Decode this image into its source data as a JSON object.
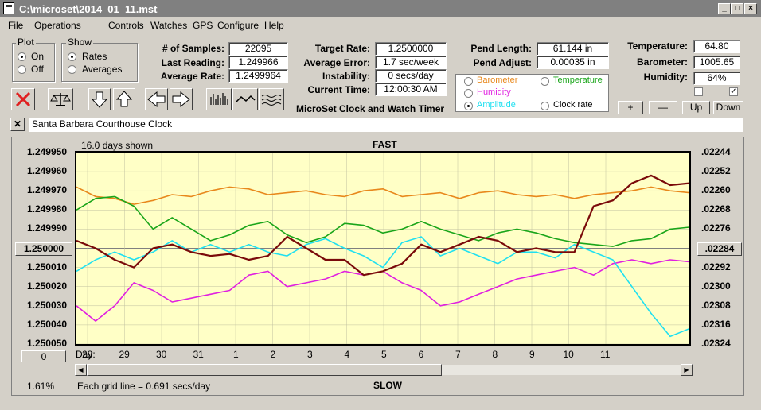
{
  "window": {
    "title": "C:\\microset\\2014_01_11.mst"
  },
  "menu": [
    "File",
    "Operations",
    "Controls",
    "Watches",
    "GPS",
    "Configure",
    "Help"
  ],
  "plot_group": {
    "title": "Plot",
    "on": "On",
    "off": "Off",
    "selected": "On"
  },
  "show_group": {
    "title": "Show",
    "rates": "Rates",
    "averages": "Averages",
    "selected": "Rates"
  },
  "stats": {
    "samples_label": "# of Samples:",
    "samples": "22095",
    "last_label": "Last Reading:",
    "last": "1.249966",
    "avg_label": "Average Rate:",
    "avg": "1.2499964"
  },
  "targets": {
    "target_label": "Target Rate:",
    "target": "1.2500000",
    "err_label": "Average Error:",
    "err": "1.7 sec/week",
    "instab_label": "Instability:",
    "instab": "0 secs/day",
    "time_label": "Current Time:",
    "time": "12:00:30 AM",
    "app_caption": "MicroSet Clock and Watch Timer"
  },
  "pend": {
    "length_label": "Pend Length:",
    "length": "61.144 in",
    "adjust_label": "Pend Adjust:",
    "adjust": "0.00035 in"
  },
  "env": {
    "temp_label": "Temperature:",
    "temp": "64.80",
    "baro_label": "Barometer:",
    "baro": "1005.65",
    "hum_label": "Humidity:",
    "hum": "64%"
  },
  "legend": {
    "barometer": "Barometer",
    "temperature": "Temperature",
    "humidity": "Humidity",
    "amplitude": "Amplitude",
    "clock_rate": "Clock rate",
    "selected": "Amplitude"
  },
  "scale_buttons": {
    "plus": "+",
    "minus": "—",
    "up": "Up",
    "down": "Down"
  },
  "clock_name": "Santa Barbara Courthouse Clock",
  "colors": {
    "barometer": "#e8881c",
    "temperature": "#1aa51a",
    "humidity": "#e020e0",
    "amplitude": "#20e0f0",
    "clock_rate": "#7a0a0a",
    "plot_bg": "#ffffc6"
  },
  "plot": {
    "days_shown": "16.0 days shown",
    "top_label": "FAST",
    "bottom_label": "SLOW",
    "day_prefix": "Day:",
    "grid_note": "Each grid line = 0.691 secs/day",
    "percent": "1.61%",
    "left_center_value": "1.250000",
    "right_center_value": ".02284",
    "offset_value": "0"
  },
  "chart_data": {
    "type": "line",
    "x_tick_labels": [
      "28",
      "29",
      "30",
      "31",
      "1",
      "2",
      "3",
      "4",
      "5",
      "6",
      "7",
      "8",
      "9",
      "10",
      "11"
    ],
    "left_axis": {
      "ticks": [
        "1.249950",
        "1.249960",
        "1.249970",
        "1.249980",
        "1.249990",
        "1.250000",
        "1.250010",
        "1.250020",
        "1.250030",
        "1.250040",
        "1.250050"
      ],
      "range": [
        1.24995,
        1.25005
      ],
      "inverted": true
    },
    "right_axis": {
      "ticks": [
        ".02244",
        ".02252",
        ".02260",
        ".02268",
        ".02276",
        ".02284",
        ".02292",
        ".02300",
        ".02308",
        ".02316",
        ".02324"
      ],
      "range": [
        0.02244,
        0.02324
      ]
    },
    "x_range": [
      0,
      16
    ],
    "series": [
      {
        "name": "Barometer",
        "color": "#e8881c",
        "x": [
          0,
          0.5,
          1,
          1.5,
          2,
          2.5,
          3,
          3.5,
          4,
          4.5,
          5,
          5.5,
          6,
          6.5,
          7,
          7.5,
          8,
          8.5,
          9,
          9.5,
          10,
          10.5,
          11,
          11.5,
          12,
          12.5,
          13,
          13.5,
          14,
          14.5,
          15,
          15.5,
          16
        ],
        "y": [
          1.249968,
          1.249973,
          1.249974,
          1.249977,
          1.249975,
          1.249972,
          1.249973,
          1.24997,
          1.249968,
          1.249969,
          1.249972,
          1.249971,
          1.24997,
          1.249972,
          1.249973,
          1.24997,
          1.249969,
          1.249973,
          1.249972,
          1.249971,
          1.249974,
          1.249971,
          1.24997,
          1.249972,
          1.249973,
          1.249972,
          1.249974,
          1.249972,
          1.249971,
          1.24997,
          1.249968,
          1.24997,
          1.249971
        ]
      },
      {
        "name": "Temperature",
        "color": "#1aa51a",
        "x": [
          0,
          0.5,
          1,
          1.5,
          2,
          2.5,
          3,
          3.5,
          4,
          4.5,
          5,
          5.5,
          6,
          6.5,
          7,
          7.5,
          8,
          8.5,
          9,
          9.5,
          10,
          10.5,
          11,
          11.5,
          12,
          12.5,
          13,
          13.5,
          14,
          14.5,
          15,
          15.5,
          16
        ],
        "y": [
          1.24998,
          1.249974,
          1.249973,
          1.249978,
          1.24999,
          1.249984,
          1.24999,
          1.249996,
          1.249993,
          1.249988,
          1.249986,
          1.249993,
          1.249997,
          1.249994,
          1.249987,
          1.249988,
          1.249992,
          1.24999,
          1.249986,
          1.24999,
          1.249993,
          1.249996,
          1.249992,
          1.24999,
          1.249992,
          1.249995,
          1.249997,
          1.249998,
          1.249999,
          1.249996,
          1.249995,
          1.24999,
          1.249989
        ]
      },
      {
        "name": "Humidity",
        "color": "#e020e0",
        "x": [
          0,
          0.5,
          1,
          1.5,
          2,
          2.5,
          3,
          3.5,
          4,
          4.5,
          5,
          5.5,
          6,
          6.5,
          7,
          7.5,
          8,
          8.5,
          9,
          9.5,
          10,
          10.5,
          11,
          11.5,
          12,
          12.5,
          13,
          13.5,
          14,
          14.5,
          15,
          15.5,
          16
        ],
        "y": [
          1.25003,
          1.250038,
          1.25003,
          1.250018,
          1.250022,
          1.250028,
          1.250026,
          1.250024,
          1.250022,
          1.250014,
          1.250012,
          1.25002,
          1.250018,
          1.250016,
          1.250012,
          1.250014,
          1.250012,
          1.250018,
          1.250022,
          1.25003,
          1.250028,
          1.250024,
          1.25002,
          1.250016,
          1.250014,
          1.250012,
          1.25001,
          1.250014,
          1.250008,
          1.250006,
          1.250008,
          1.250006,
          1.250007
        ]
      },
      {
        "name": "Amplitude",
        "color": "#20e0f0",
        "x": [
          0,
          0.5,
          1,
          1.5,
          2,
          2.5,
          3,
          3.5,
          4,
          4.5,
          5,
          5.5,
          6,
          6.5,
          7,
          7.5,
          8,
          8.5,
          9,
          9.5,
          10,
          10.5,
          11,
          11.5,
          12,
          12.5,
          13,
          13.5,
          14,
          14.5,
          15,
          15.5,
          16
        ],
        "y": [
          1.250012,
          1.250006,
          1.250002,
          1.250006,
          1.250002,
          1.249996,
          1.250002,
          1.249998,
          1.250002,
          1.249998,
          1.250002,
          1.250004,
          1.249998,
          1.249995,
          1.25,
          1.250004,
          1.25001,
          1.249997,
          1.249994,
          1.250004,
          1.25,
          1.250004,
          1.250008,
          1.250002,
          1.250002,
          1.250005,
          1.249998,
          1.250002,
          1.250006,
          1.25002,
          1.250034,
          1.250046,
          1.250042
        ]
      },
      {
        "name": "Clock rate",
        "color": "#7a0a0a",
        "x": [
          0,
          0.5,
          1,
          1.5,
          2,
          2.5,
          3,
          3.5,
          4,
          4.5,
          5,
          5.5,
          6,
          6.5,
          7,
          7.5,
          8,
          8.5,
          9,
          9.5,
          10,
          10.5,
          11,
          11.5,
          12,
          12.5,
          13,
          13.5,
          14,
          14.5,
          15,
          15.5,
          16
        ],
        "y": [
          1.249996,
          1.25,
          1.250006,
          1.25001,
          1.25,
          1.249998,
          1.250002,
          1.250004,
          1.250003,
          1.250006,
          1.250004,
          1.249994,
          1.25,
          1.250006,
          1.250006,
          1.250014,
          1.250012,
          1.250008,
          1.249998,
          1.250002,
          1.249998,
          1.249994,
          1.249996,
          1.250002,
          1.25,
          1.250002,
          1.250002,
          1.249978,
          1.249975,
          1.249966,
          1.249962,
          1.249967,
          1.249966
        ]
      }
    ]
  }
}
